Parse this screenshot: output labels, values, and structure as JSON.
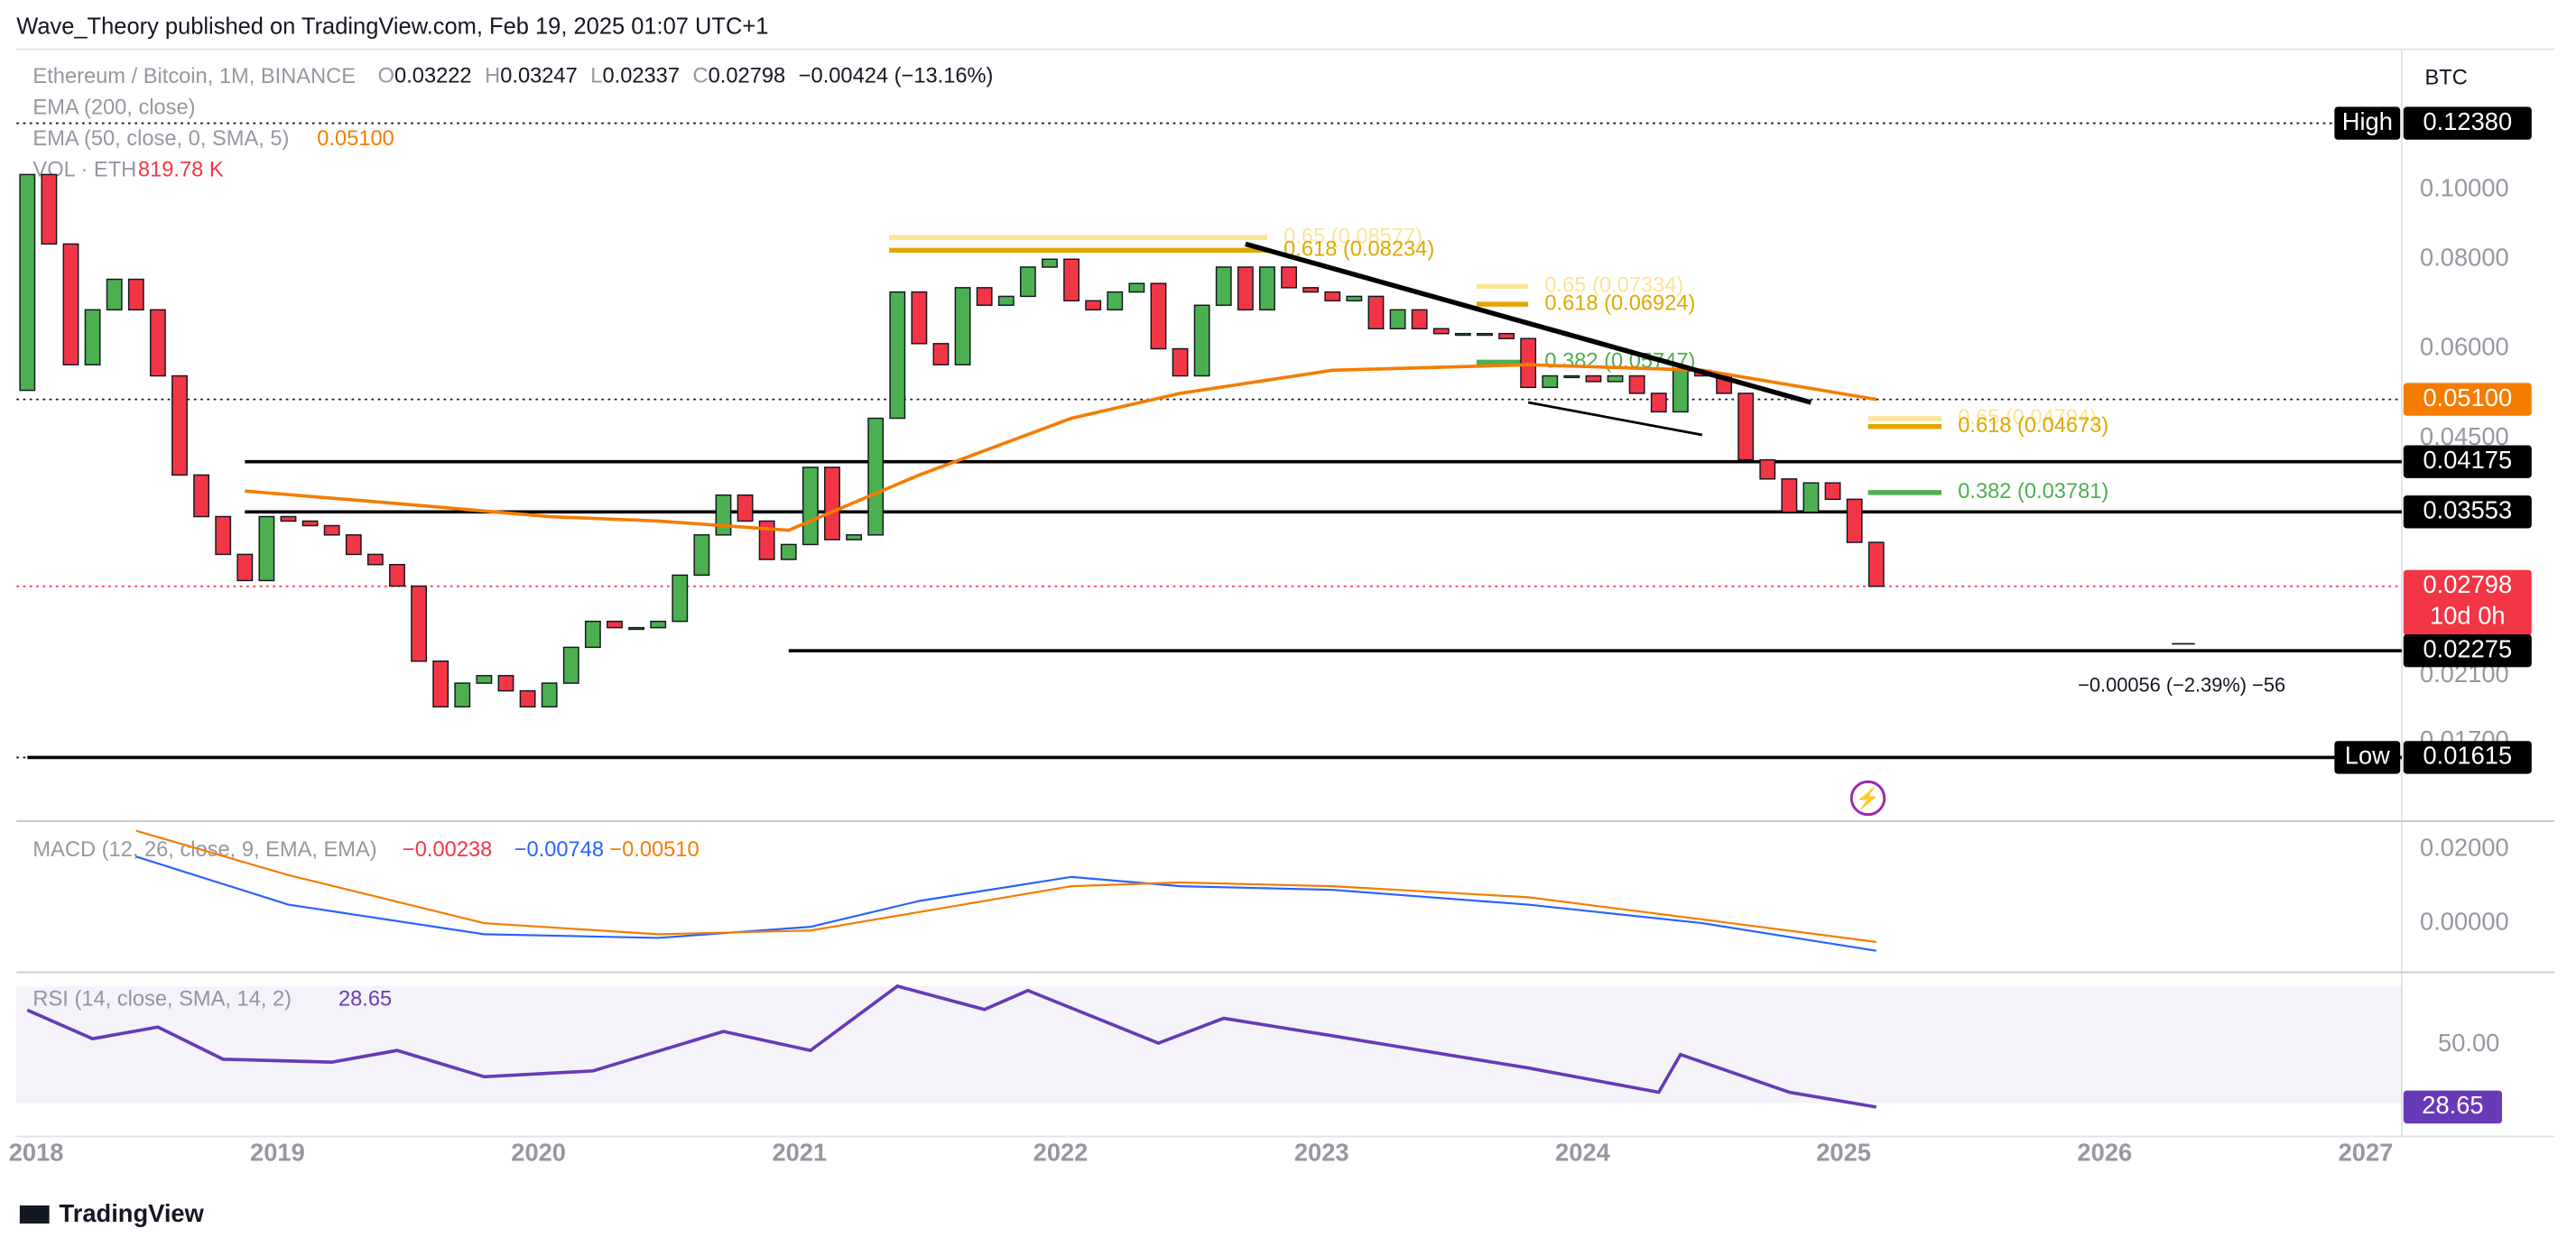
{
  "header": {
    "publisher": "Wave_Theory published on TradingView.com, Feb 19, 2025 01:07 UTC+1",
    "symbol": "Ethereum / Bitcoin, 1M, BINANCE",
    "ohlc": [
      {
        "k": "O",
        "v": "0.03222"
      },
      {
        "k": "H",
        "v": "0.03247"
      },
      {
        "k": "L",
        "v": "0.02337"
      },
      {
        "k": "C",
        "v": "0.02798"
      }
    ],
    "change": "−0.00424 (−13.16%)",
    "ema200": "EMA (200, close)",
    "ema50": "EMA (50, close, 0, SMA, 5)",
    "ema50_value": "0.05100",
    "vol": "VOL · ETH",
    "vol_value": "819.78 K",
    "currency": "BTC",
    "footer": "TradingView"
  },
  "chart_data": {
    "type": "candlestick",
    "log_scale": true,
    "up_color": "#4caf50",
    "down_color": "#f23645",
    "xlim": [
      "2018-01",
      "2027-01"
    ],
    "xticks": [
      {
        "value": "2018-01",
        "label": "2018"
      },
      {
        "value": "2019-01",
        "label": "2019"
      },
      {
        "value": "2020-01",
        "label": "2020"
      },
      {
        "value": "2021-01",
        "label": "2021"
      },
      {
        "value": "2022-01",
        "label": "2022"
      },
      {
        "value": "2023-01",
        "label": "2023"
      },
      {
        "value": "2024-01",
        "label": "2024"
      },
      {
        "value": "2025-01",
        "label": "2025"
      },
      {
        "value": "2026-01",
        "label": "2026"
      },
      {
        "value": "2027-01",
        "label": "2027"
      }
    ],
    "ylim": [
      0.0133,
      0.157
    ],
    "yticks": [
      {
        "value": 0.1,
        "label": "0.10000"
      },
      {
        "value": 0.08,
        "label": "0.08000"
      },
      {
        "value": 0.06,
        "label": "0.06000"
      },
      {
        "value": 0.045,
        "label": "0.04500"
      },
      {
        "value": 0.021,
        "label": "0.02100"
      },
      {
        "value": 0.017,
        "label": "0.01700"
      }
    ],
    "x": [
      "2018-01",
      "2018-02",
      "2018-03",
      "2018-04",
      "2018-05",
      "2018-06",
      "2018-07",
      "2018-08",
      "2018-09",
      "2018-10",
      "2018-11",
      "2018-12",
      "2019-01",
      "2019-02",
      "2019-03",
      "2019-04",
      "2019-05",
      "2019-06",
      "2019-07",
      "2019-08",
      "2019-09",
      "2019-10",
      "2019-11",
      "2019-12",
      "2020-01",
      "2020-02",
      "2020-03",
      "2020-04",
      "2020-05",
      "2020-06",
      "2020-07",
      "2020-08",
      "2020-09",
      "2020-10",
      "2020-11",
      "2020-12",
      "2021-01",
      "2021-02",
      "2021-03",
      "2021-04",
      "2021-05",
      "2021-06",
      "2021-07",
      "2021-08",
      "2021-09",
      "2021-10",
      "2021-11",
      "2021-12",
      "2022-01",
      "2022-02",
      "2022-03",
      "2022-04",
      "2022-05",
      "2022-06",
      "2022-07",
      "2022-08",
      "2022-09",
      "2022-10",
      "2022-11",
      "2022-12",
      "2023-01",
      "2023-02",
      "2023-03",
      "2023-04",
      "2023-05",
      "2023-06",
      "2023-07",
      "2023-08",
      "2023-09",
      "2023-10",
      "2023-11",
      "2023-12",
      "2024-01",
      "2024-02",
      "2024-03",
      "2024-04",
      "2024-05",
      "2024-06",
      "2024-07",
      "2024-08",
      "2024-09",
      "2024-10",
      "2024-11",
      "2024-12",
      "2025-01",
      "2025-02"
    ],
    "open": [
      0.0525,
      0.105,
      0.084,
      0.057,
      0.068,
      0.075,
      0.068,
      0.055,
      0.04,
      0.035,
      0.031,
      0.0285,
      0.035,
      0.0345,
      0.034,
      0.033,
      0.031,
      0.03,
      0.028,
      0.022,
      0.019,
      0.0205,
      0.021,
      0.02,
      0.019,
      0.0205,
      0.023,
      0.025,
      0.0245,
      0.0245,
      0.025,
      0.029,
      0.033,
      0.0375,
      0.0345,
      0.0305,
      0.032,
      0.041,
      0.0325,
      0.033,
      0.048,
      0.072,
      0.061,
      0.057,
      0.073,
      0.069,
      0.071,
      0.078,
      0.08,
      0.07,
      0.068,
      0.072,
      0.074,
      0.06,
      0.055,
      0.069,
      0.078,
      0.068,
      0.078,
      0.073,
      0.072,
      0.07,
      0.071,
      0.064,
      0.068,
      0.064,
      0.063,
      0.063,
      0.063,
      0.062,
      0.053,
      0.055,
      0.055,
      0.054,
      0.055,
      0.052,
      0.049,
      0.056,
      0.055,
      0.052,
      0.042,
      0.0395,
      0.0355,
      0.039,
      0.037,
      0.03222
    ],
    "close": [
      0.105,
      0.084,
      0.057,
      0.068,
      0.075,
      0.068,
      0.055,
      0.04,
      0.035,
      0.031,
      0.0285,
      0.035,
      0.0345,
      0.034,
      0.033,
      0.031,
      0.03,
      0.028,
      0.022,
      0.019,
      0.0205,
      0.021,
      0.02,
      0.019,
      0.0205,
      0.023,
      0.025,
      0.0245,
      0.0245,
      0.025,
      0.029,
      0.033,
      0.0375,
      0.0345,
      0.0305,
      0.032,
      0.041,
      0.0325,
      0.033,
      0.048,
      0.072,
      0.061,
      0.057,
      0.073,
      0.069,
      0.071,
      0.078,
      0.08,
      0.07,
      0.068,
      0.072,
      0.074,
      0.06,
      0.055,
      0.069,
      0.078,
      0.068,
      0.078,
      0.073,
      0.072,
      0.07,
      0.071,
      0.064,
      0.068,
      0.064,
      0.063,
      0.063,
      0.063,
      0.062,
      0.053,
      0.055,
      0.055,
      0.054,
      0.055,
      0.052,
      0.049,
      0.056,
      0.055,
      0.052,
      0.042,
      0.0395,
      0.0355,
      0.039,
      0.037,
      0.03222,
      0.02798
    ],
    "ema": {
      "color": "#f57c00",
      "x": [
        "2018-11",
        "2019-06",
        "2020-01",
        "2020-06",
        "2020-12",
        "2021-06",
        "2022-01",
        "2022-06",
        "2023-01",
        "2023-10",
        "2024-06",
        "2025-02"
      ],
      "values": [
        0.038,
        0.0365,
        0.035,
        0.0345,
        0.0335,
        0.04,
        0.048,
        0.052,
        0.056,
        0.057,
        0.056,
        0.051
      ]
    },
    "levels": [
      {
        "value": 0.04175,
        "label": "0.04175",
        "from": "2018-11"
      },
      {
        "value": 0.03553,
        "label": "0.03553",
        "from": "2018-11"
      },
      {
        "value": 0.02275,
        "label": "0.02275",
        "from": "2020-12"
      },
      {
        "value": 0.01615,
        "label": "0.01615",
        "from": "2018-01"
      }
    ],
    "price_labels": [
      {
        "value": 0.1238,
        "label": "0.12380",
        "tag": "High",
        "bg": "#000000"
      },
      {
        "value": 0.051,
        "label": "0.05100",
        "bg": "#f57c00"
      },
      {
        "value": 0.02798,
        "label": "0.02798",
        "sub": "10d 0h",
        "bg": "#f23645"
      },
      {
        "value": 0.01615,
        "label": "0.01615",
        "tag": "Low",
        "bg": "#000000"
      }
    ],
    "fib": [
      {
        "text": "0.65 (0.08577)",
        "value": 0.08577,
        "from": "2021-05",
        "to": "2022-10",
        "color": "#f5c518",
        "faint": true
      },
      {
        "text": "0.618 (0.08234)",
        "value": 0.08234,
        "from": "2021-05",
        "to": "2022-10",
        "color": "#e0a800"
      },
      {
        "text": "0.65 (0.07334)",
        "value": 0.07334,
        "from": "2023-08",
        "to": "2023-10",
        "color": "#f5c518",
        "faint": true
      },
      {
        "text": "0.618 (0.06924)",
        "value": 0.06924,
        "from": "2023-08",
        "to": "2023-10",
        "color": "#e0a800"
      },
      {
        "text": "0.382 (0.05747)",
        "value": 0.05747,
        "from": "2023-08",
        "to": "2023-10",
        "color": "#4caf50"
      },
      {
        "text": "0.65 (0.04794)",
        "value": 0.04794,
        "from": "2025-02",
        "to": "2025-05",
        "color": "#f5c518",
        "faint": true
      },
      {
        "text": "0.618 (0.04673)",
        "value": 0.04673,
        "from": "2025-02",
        "to": "2025-05",
        "color": "#e0a800"
      },
      {
        "text": "0.382 (0.03781)",
        "value": 0.03781,
        "from": "2025-02",
        "to": "2025-05",
        "color": "#4caf50"
      }
    ],
    "trendlines": [
      {
        "x": [
          "2022-09",
          "2024-11"
        ],
        "values": [
          0.084,
          0.0505
        ]
      },
      {
        "x": [
          "2023-10",
          "2024-06"
        ],
        "values": [
          0.0505,
          0.0455
        ]
      }
    ],
    "annotation": "−0.00056 (−2.39%) −56",
    "macd": {
      "legend": "MACD (12, 26, close, 9, EMA, EMA)",
      "hist_value": "−0.00238",
      "macd_value": "−0.00748",
      "signal_value": "−0.00510",
      "ylim": [
        -0.0124,
        0.0267
      ],
      "yticks": [
        {
          "value": 0.02,
          "label": "0.02000"
        },
        {
          "value": 0,
          "label": "0.00000"
        }
      ],
      "series": [
        {
          "color": "#2962ff",
          "x": [
            "2018-06",
            "2019-01",
            "2019-10",
            "2020-06",
            "2021-01",
            "2021-06",
            "2022-01",
            "2022-06",
            "2023-01",
            "2023-10",
            "2024-06",
            "2025-02"
          ],
          "values": [
            0.018,
            0.005,
            -0.003,
            -0.004,
            -0.001,
            0.006,
            0.0125,
            0.01,
            0.009,
            0.005,
            0.0,
            -0.00748
          ]
        },
        {
          "color": "#f57c00",
          "x": [
            "2018-06",
            "2019-01",
            "2019-10",
            "2020-06",
            "2021-01",
            "2021-06",
            "2022-01",
            "2022-06",
            "2023-01",
            "2023-10",
            "2024-06",
            "2025-02"
          ],
          "values": [
            0.025,
            0.013,
            0.0,
            -0.003,
            -0.002,
            0.003,
            0.01,
            0.011,
            0.01,
            0.007,
            0.001,
            -0.0051
          ]
        }
      ]
    },
    "rsi": {
      "legend": "RSI (14, close, SMA, 14, 2)",
      "value_label": "28.65",
      "color": "#673ab7",
      "band": [
        30,
        70
      ],
      "ylim": [
        19.7,
        72.5
      ],
      "yticks": [
        {
          "value": 50,
          "label": "50.00"
        }
      ],
      "x": [
        "2018-01",
        "2018-04",
        "2018-07",
        "2018-10",
        "2019-03",
        "2019-06",
        "2019-10",
        "2020-03",
        "2020-09",
        "2021-01",
        "2021-05",
        "2021-09",
        "2021-11",
        "2022-05",
        "2022-08",
        "2023-01",
        "2023-10",
        "2024-04",
        "2024-05",
        "2024-10",
        "2025-02"
      ],
      "values": [
        61.8,
        52,
        56,
        45,
        44,
        48,
        39,
        41,
        54.5,
        48,
        70,
        62,
        68.5,
        50.5,
        59,
        53,
        42,
        33.7,
        46.6,
        33.7,
        28.65
      ]
    }
  }
}
